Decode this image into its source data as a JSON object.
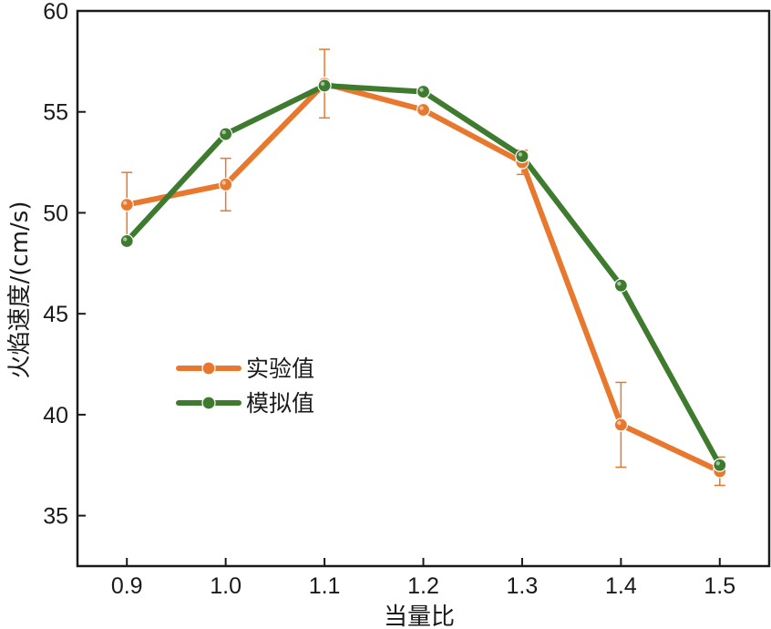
{
  "chart_data": {
    "type": "line",
    "xlabel": "当量比",
    "ylabel": "火焰速度/(cm/s)",
    "xlim": [
      0.85,
      1.55
    ],
    "ylim": [
      32.5,
      60
    ],
    "x_ticks": [
      "0.9",
      "1.0",
      "1.1",
      "1.2",
      "1.3",
      "1.4",
      "1.5"
    ],
    "y_ticks": [
      "35",
      "40",
      "45",
      "50",
      "55",
      "60"
    ],
    "x": [
      0.9,
      1.0,
      1.1,
      1.2,
      1.3,
      1.4,
      1.5
    ],
    "legend_position": "left-center",
    "grid": false,
    "series": [
      {
        "name": "实验值",
        "color": "#E8782E",
        "values": [
          50.4,
          51.4,
          56.4,
          55.1,
          52.5,
          39.5,
          37.2
        ],
        "error": [
          1.6,
          1.3,
          1.7,
          0,
          0.6,
          2.1,
          0.7
        ]
      },
      {
        "name": "模拟值",
        "color": "#3E7B2F",
        "values": [
          48.6,
          53.9,
          56.3,
          56.0,
          52.8,
          46.4,
          37.5
        ]
      }
    ]
  }
}
